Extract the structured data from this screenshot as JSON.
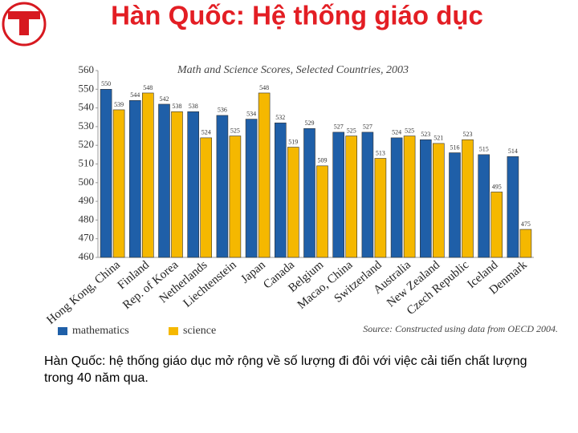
{
  "slide_title": "Hàn Quốc: Hệ thống giáo dục",
  "caption": "Hàn Quốc: hệ thống giáo dục mở rộng về số lượng đi đôi với việc cải tiến chất lượng trong 40 năm qua.",
  "chart_data": {
    "type": "bar",
    "title": "Math and Science Scores, Selected Countries, 2003",
    "source": "Source: Constructed using data from OECD 2004.",
    "categories": [
      "Hong Kong, China",
      "Finland",
      "Rep. of Korea",
      "Netherlands",
      "Liechtenstein",
      "Japan",
      "Canada",
      "Belgium",
      "Macao, China",
      "Switzerland",
      "Australia",
      "New Zealand",
      "Czech Republic",
      "Iceland",
      "Denmark"
    ],
    "series": [
      {
        "name": "mathematics",
        "color": "#1f5fa8",
        "values": [
          550,
          544,
          542,
          538,
          536,
          534,
          532,
          529,
          527,
          527,
          524,
          523,
          516,
          515,
          514
        ]
      },
      {
        "name": "science",
        "color": "#f5b800",
        "values": [
          539,
          548,
          538,
          524,
          525,
          548,
          519,
          509,
          525,
          513,
          525,
          521,
          523,
          495,
          475
        ]
      }
    ],
    "ylim": [
      460,
      560
    ],
    "yticks": [
      460,
      470,
      480,
      490,
      500,
      510,
      520,
      530,
      540,
      550,
      560
    ],
    "grid": false,
    "legend": "bottom"
  }
}
